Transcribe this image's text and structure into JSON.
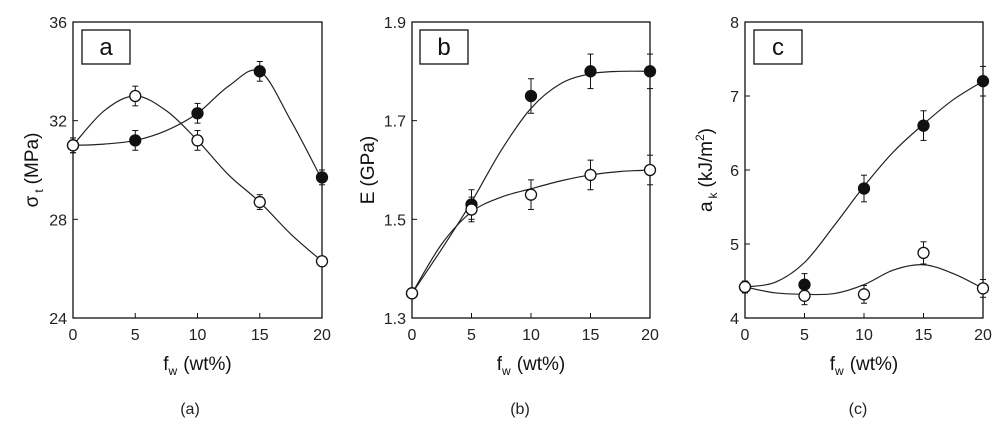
{
  "chart_data": [
    {
      "type": "scatter",
      "panel_label": "a",
      "caption": "(a)",
      "ylabel_main": "σ",
      "ylabel_sub": "t",
      "ylabel_unit": "(MPa)",
      "xlabel_main": "f",
      "xlabel_sub": "w",
      "xlabel_unit": "(wt%)",
      "xlim": [
        0,
        20
      ],
      "ylim": [
        24,
        36
      ],
      "xticks": [
        "0",
        "5",
        "10",
        "15",
        "20"
      ],
      "yticks": [
        "24",
        "28",
        "32",
        "36"
      ],
      "series": [
        {
          "marker": "filled",
          "x": [
            0,
            5,
            10,
            15,
            20
          ],
          "y": [
            31.0,
            31.2,
            32.3,
            34.0,
            29.7
          ],
          "err": [
            0.3,
            0.4,
            0.4,
            0.4,
            0.3
          ],
          "curve": [
            [
              0,
              31.0
            ],
            [
              2.5,
              31.05
            ],
            [
              5,
              31.2
            ],
            [
              7.5,
              31.6
            ],
            [
              10,
              32.3
            ],
            [
              12.5,
              33.4
            ],
            [
              15,
              34.0
            ],
            [
              17.5,
              32.0
            ],
            [
              20,
              29.6
            ]
          ]
        },
        {
          "marker": "open",
          "x": [
            0,
            5,
            10,
            15,
            20
          ],
          "y": [
            31.0,
            33.0,
            31.2,
            28.7,
            26.3
          ],
          "err": [
            0.3,
            0.4,
            0.4,
            0.3,
            0.2
          ],
          "curve": [
            [
              0,
              31.0
            ],
            [
              2.5,
              32.4
            ],
            [
              5,
              33.0
            ],
            [
              7.5,
              32.4
            ],
            [
              10,
              31.2
            ],
            [
              12.5,
              29.8
            ],
            [
              15,
              28.7
            ],
            [
              17.5,
              27.4
            ],
            [
              20,
              26.3
            ]
          ]
        }
      ]
    },
    {
      "type": "scatter",
      "panel_label": "b",
      "caption": "(b)",
      "ylabel_main": "E",
      "ylabel_sub": "",
      "ylabel_unit": "(GPa)",
      "xlabel_main": "f",
      "xlabel_sub": "w",
      "xlabel_unit": "(wt%)",
      "xlim": [
        0,
        20
      ],
      "ylim": [
        1.3,
        1.9
      ],
      "xticks": [
        "0",
        "5",
        "10",
        "15",
        "20"
      ],
      "yticks": [
        "1.3",
        "1.5",
        "1.7",
        "1.9"
      ],
      "series": [
        {
          "marker": "filled",
          "x": [
            0,
            5,
            10,
            15,
            20
          ],
          "y": [
            1.35,
            1.53,
            1.75,
            1.8,
            1.8
          ],
          "err": [
            0.01,
            0.03,
            0.035,
            0.035,
            0.035
          ],
          "curve": [
            [
              0,
              1.35
            ],
            [
              2.5,
              1.44
            ],
            [
              5,
              1.535
            ],
            [
              7.5,
              1.64
            ],
            [
              10,
              1.725
            ],
            [
              12.5,
              1.775
            ],
            [
              15,
              1.795
            ],
            [
              17.5,
              1.8
            ],
            [
              20,
              1.8
            ]
          ]
        },
        {
          "marker": "open",
          "x": [
            0,
            5,
            10,
            15,
            20
          ],
          "y": [
            1.35,
            1.52,
            1.55,
            1.59,
            1.6
          ],
          "err": [
            0.01,
            0.025,
            0.03,
            0.03,
            0.03
          ],
          "curve": [
            [
              0,
              1.35
            ],
            [
              2.5,
              1.45
            ],
            [
              5,
              1.515
            ],
            [
              7.5,
              1.545
            ],
            [
              10,
              1.562
            ],
            [
              12.5,
              1.578
            ],
            [
              15,
              1.59
            ],
            [
              17.5,
              1.597
            ],
            [
              20,
              1.6
            ]
          ]
        }
      ]
    },
    {
      "type": "scatter",
      "panel_label": "c",
      "caption": "(c)",
      "ylabel_main": "a",
      "ylabel_sub": "k",
      "ylabel_unit": "(kJ/m",
      "ylabel_sup": "2",
      "ylabel_close": ")",
      "xlabel_main": "f",
      "xlabel_sub": "w",
      "xlabel_unit": "(wt%)",
      "xlim": [
        0,
        20
      ],
      "ylim": [
        4,
        8
      ],
      "xticks": [
        "0",
        "5",
        "10",
        "15",
        "20"
      ],
      "yticks": [
        "4",
        "5",
        "6",
        "7",
        "8"
      ],
      "series": [
        {
          "marker": "filled",
          "x": [
            0,
            5,
            10,
            15,
            20
          ],
          "y": [
            4.42,
            4.45,
            5.75,
            6.6,
            7.2
          ],
          "err": [
            0.08,
            0.15,
            0.18,
            0.2,
            0.2
          ],
          "curve": [
            [
              0,
              4.42
            ],
            [
              2.5,
              4.48
            ],
            [
              5,
              4.75
            ],
            [
              7.5,
              5.25
            ],
            [
              10,
              5.78
            ],
            [
              12.5,
              6.25
            ],
            [
              15,
              6.62
            ],
            [
              17.5,
              6.95
            ],
            [
              20,
              7.2
            ]
          ]
        },
        {
          "marker": "open",
          "x": [
            0,
            5,
            10,
            15,
            20
          ],
          "y": [
            4.42,
            4.3,
            4.32,
            4.88,
            4.4
          ],
          "err": [
            0.08,
            0.12,
            0.12,
            0.15,
            0.12
          ],
          "curve": [
            [
              0,
              4.42
            ],
            [
              2.5,
              4.34
            ],
            [
              5,
              4.32
            ],
            [
              7.5,
              4.33
            ],
            [
              10,
              4.45
            ],
            [
              12.5,
              4.65
            ],
            [
              15,
              4.72
            ],
            [
              17.5,
              4.6
            ],
            [
              20,
              4.4
            ]
          ]
        }
      ]
    }
  ]
}
